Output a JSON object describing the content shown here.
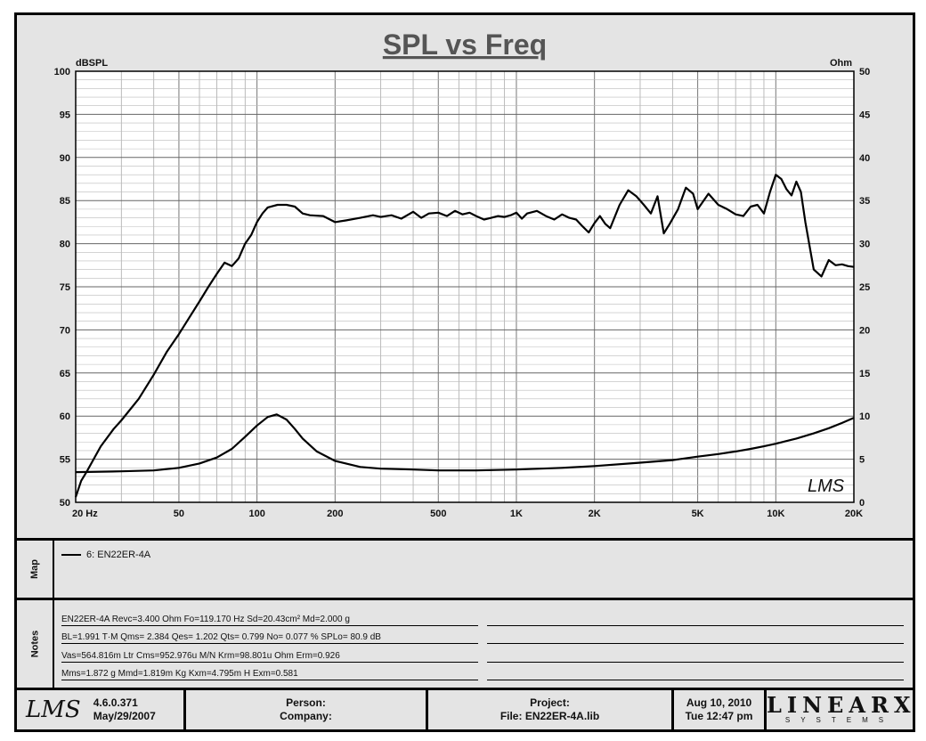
{
  "chart_data": {
    "type": "line",
    "title": "SPL vs Freq",
    "ylabel_left": "dBSPL",
    "ylabel_right": "Ohm",
    "xscale": "log",
    "xlim": [
      20,
      20000
    ],
    "ylim_left": [
      50,
      100
    ],
    "ylim_right": [
      0,
      50
    ],
    "grid": true,
    "x_ticks": [
      {
        "value": 20,
        "label": "20  Hz"
      },
      {
        "value": 50,
        "label": "50"
      },
      {
        "value": 100,
        "label": "100"
      },
      {
        "value": 200,
        "label": "200"
      },
      {
        "value": 500,
        "label": "500"
      },
      {
        "value": 1000,
        "label": "1K"
      },
      {
        "value": 2000,
        "label": "2K"
      },
      {
        "value": 5000,
        "label": "5K"
      },
      {
        "value": 10000,
        "label": "10K"
      },
      {
        "value": 20000,
        "label": "20K"
      }
    ],
    "y_ticks_left": [
      "100",
      "95",
      "90",
      "85",
      "80",
      "75",
      "70",
      "65",
      "60",
      "55",
      "50"
    ],
    "y_ticks_right": [
      "50",
      "45",
      "40",
      "35",
      "30",
      "25",
      "20",
      "15",
      "10",
      "5",
      "0"
    ],
    "series": [
      {
        "axis": "left",
        "x": [
          20,
          21,
          22,
          25,
          28,
          30,
          35,
          40,
          45,
          50,
          55,
          60,
          65,
          70,
          75,
          80,
          85,
          90,
          95,
          100,
          105,
          110,
          120,
          130,
          140,
          150,
          160,
          180,
          200,
          220,
          250,
          280,
          300,
          330,
          360,
          400,
          430,
          460,
          500,
          540,
          580,
          620,
          660,
          700,
          750,
          800,
          850,
          900,
          950,
          1000,
          1050,
          1100,
          1200,
          1300,
          1400,
          1500,
          1600,
          1700,
          1800,
          1900,
          2000,
          2100,
          2200,
          2300,
          2500,
          2700,
          2900,
          3100,
          3300,
          3500,
          3700,
          3900,
          4200,
          4500,
          4800,
          5000,
          5500,
          6000,
          6500,
          7000,
          7500,
          8000,
          8500,
          9000,
          9500,
          10000,
          10500,
          11000,
          11500,
          12000,
          12500,
          13000,
          14000,
          15000,
          16000,
          17000,
          18000,
          19000,
          20000
        ],
        "y": [
          50.6,
          52.5,
          53.5,
          56.5,
          58.5,
          59.5,
          62,
          64.8,
          67.5,
          69.5,
          71.5,
          73.3,
          75,
          76.5,
          77.8,
          77.4,
          78.3,
          80,
          81,
          82.5,
          83.5,
          84.2,
          84.5,
          84.5,
          84.3,
          83.5,
          83.3,
          83.2,
          82.5,
          82.7,
          83,
          83.3,
          83.1,
          83.3,
          82.9,
          83.7,
          83,
          83.5,
          83.6,
          83.2,
          83.8,
          83.4,
          83.6,
          83.2,
          82.8,
          83,
          83.2,
          83.1,
          83.3,
          83.6,
          82.9,
          83.5,
          83.8,
          83.2,
          82.8,
          83.4,
          83,
          82.8,
          82,
          81.3,
          82.4,
          83.2,
          82.3,
          81.8,
          84.5,
          86.2,
          85.5,
          84.5,
          83.5,
          85.5,
          81.2,
          82.3,
          84,
          86.5,
          85.8,
          84,
          85.8,
          84.5,
          84,
          83.4,
          83.2,
          84.3,
          84.5,
          83.5,
          86,
          88,
          87.5,
          86.3,
          85.6,
          87.2,
          86,
          82.5,
          77,
          76.2,
          78.1,
          77.5,
          77.6,
          77.4,
          77.3
        ]
      },
      {
        "axis": "right",
        "x": [
          20,
          30,
          40,
          50,
          60,
          70,
          80,
          90,
          100,
          110,
          119.17,
          130,
          140,
          150,
          170,
          200,
          250,
          300,
          400,
          500,
          700,
          1000,
          1500,
          2000,
          3000,
          4000,
          5000,
          6000,
          7000,
          8000,
          9000,
          10000,
          12000,
          14000,
          16000,
          18000,
          20000
        ],
        "y": [
          3.5,
          3.6,
          3.7,
          4.0,
          4.5,
          5.2,
          6.2,
          7.6,
          8.9,
          9.9,
          10.2,
          9.6,
          8.5,
          7.4,
          5.9,
          4.8,
          4.1,
          3.9,
          3.8,
          3.7,
          3.7,
          3.8,
          4.0,
          4.2,
          4.6,
          4.9,
          5.3,
          5.6,
          5.9,
          6.2,
          6.5,
          6.8,
          7.4,
          8.0,
          8.6,
          9.2,
          9.8
        ]
      }
    ]
  },
  "legend": {
    "panel_label": "Map",
    "entries": [
      {
        "label": "6: EN22ER-4A"
      }
    ]
  },
  "notes": {
    "panel_label": "Notes",
    "lines": [
      "EN22ER-4A  Revc=3.400 Ohm  Fo=119.170 Hz  Sd=20.43cm² Md=2.000 g",
      "BL=1.991 T·M  Qms= 2.384  Qes= 1.202  Qts= 0.799  No= 0.077 %  SPLo= 80.9 dB",
      "Vas=564.816m Ltr Cms=952.976u M/N  Krm=98.801u Ohm  Erm=0.926",
      "Mms=1.872 g  Mmd=1.819m Kg  Kxm=4.795m H  Exm=0.581"
    ]
  },
  "footer": {
    "version": "4.6.0.371",
    "version_date": "May/29/2007",
    "person_label": "Person:",
    "company_label": "Company:",
    "project_label": "Project:",
    "file_label": "File: EN22ER-4A.lib",
    "date": "Aug 10, 2010",
    "time": "Tue 12:47 pm",
    "lms_logo_text": "LMS",
    "brand_name": "LINEARX",
    "brand_sub": "SYSTEMS"
  },
  "watermark": "LMS"
}
